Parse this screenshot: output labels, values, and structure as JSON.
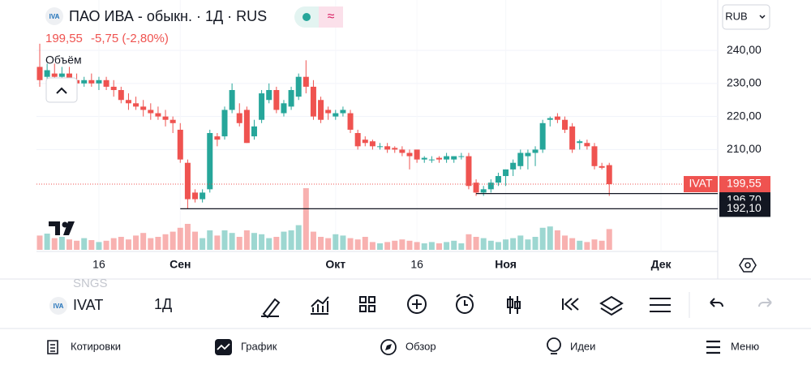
{
  "header": {
    "logo": "IVA",
    "title": "ПАО ИВА - обыкн. · 1Д · RUS",
    "price": "199,55",
    "change": "-5,75 (-2,80%)",
    "currency": "RUB",
    "volume_label": "Объём"
  },
  "chart": {
    "type": "candlestick",
    "candles": [
      [
        235,
        242,
        229,
        231
      ],
      [
        232,
        236,
        230,
        234
      ],
      [
        233,
        236,
        231,
        232
      ],
      [
        232,
        235,
        230,
        233
      ],
      [
        233,
        235,
        231,
        231
      ],
      [
        231,
        233,
        229,
        230
      ],
      [
        230,
        232,
        229,
        231
      ],
      [
        231,
        233,
        229,
        230
      ],
      [
        230,
        232,
        228,
        231
      ],
      [
        231,
        232,
        228,
        229
      ],
      [
        229,
        231,
        226,
        228
      ],
      [
        228,
        229,
        224,
        225
      ],
      [
        225,
        227,
        222,
        224
      ],
      [
        224,
        226,
        222,
        223
      ],
      [
        223,
        225,
        220,
        222
      ],
      [
        222,
        224,
        219,
        221
      ],
      [
        221,
        223,
        219,
        220
      ],
      [
        220,
        222,
        217,
        219
      ],
      [
        219,
        220,
        215,
        218
      ],
      [
        216,
        218,
        206,
        207
      ],
      [
        206,
        207,
        192,
        195
      ],
      [
        197,
        198,
        194,
        195
      ],
      [
        195,
        198,
        194,
        197
      ],
      [
        198,
        216,
        197,
        215
      ],
      [
        214,
        215,
        211,
        213
      ],
      [
        214,
        223,
        213,
        222
      ],
      [
        222,
        230,
        221,
        228
      ],
      [
        221,
        224,
        217,
        218
      ],
      [
        222,
        223,
        212,
        212
      ],
      [
        214,
        219,
        213,
        217
      ],
      [
        219,
        228,
        218,
        227
      ],
      [
        225,
        230,
        224,
        228
      ],
      [
        228,
        229,
        221,
        222
      ],
      [
        221,
        225,
        220,
        224
      ],
      [
        223,
        229,
        222,
        228
      ],
      [
        226,
        233,
        225,
        232
      ],
      [
        232,
        237,
        227,
        229
      ],
      [
        229,
        231,
        219,
        220
      ],
      [
        225,
        226,
        218,
        219
      ],
      [
        222,
        223,
        219,
        221
      ],
      [
        220,
        222,
        219,
        221
      ],
      [
        221,
        223,
        220,
        222
      ],
      [
        221,
        222,
        215,
        216
      ],
      [
        215,
        216,
        210,
        211
      ],
      [
        213,
        214,
        211,
        212
      ],
      [
        212.5,
        213,
        210,
        211
      ],
      [
        211,
        212,
        210,
        211
      ],
      [
        211,
        212,
        209,
        210
      ],
      [
        210.5,
        211,
        209,
        210
      ],
      [
        210,
        211,
        208,
        209
      ],
      [
        209,
        210,
        204,
        208
      ],
      [
        210,
        210,
        206,
        207
      ],
      [
        207,
        208,
        206,
        207.5
      ],
      [
        207,
        208,
        206,
        207
      ],
      [
        207.5,
        208,
        206,
        207
      ],
      [
        207,
        209,
        206,
        208
      ],
      [
        207,
        208,
        206,
        208
      ],
      [
        208,
        209,
        207,
        208
      ],
      [
        208,
        209,
        198,
        199
      ],
      [
        200,
        201,
        196,
        197
      ],
      [
        197,
        199,
        196,
        198
      ],
      [
        198,
        201,
        197,
        200
      ],
      [
        200,
        203,
        199,
        202
      ],
      [
        202,
        204,
        199,
        204
      ],
      [
        204,
        207,
        202,
        206
      ],
      [
        205,
        210,
        204,
        209
      ],
      [
        208,
        210,
        204,
        209
      ],
      [
        209,
        211,
        205,
        210
      ],
      [
        210,
        219,
        209,
        218
      ],
      [
        219,
        220,
        217,
        219.5
      ],
      [
        220,
        221,
        218,
        219
      ],
      [
        219,
        220,
        215,
        216
      ],
      [
        217,
        218,
        209,
        210
      ],
      [
        212,
        213,
        210,
        212.5
      ],
      [
        212,
        213,
        210,
        211
      ],
      [
        211,
        212,
        204,
        205
      ],
      [
        205,
        206,
        204,
        204.5
      ],
      [
        205.3,
        206,
        196,
        199.55
      ]
    ],
    "volumes": [
      22,
      25,
      18,
      20,
      16,
      14,
      18,
      15,
      12,
      14,
      18,
      20,
      16,
      22,
      26,
      18,
      20,
      24,
      28,
      34,
      40,
      28,
      18,
      30,
      22,
      30,
      26,
      20,
      30,
      26,
      24,
      18,
      20,
      28,
      30,
      38,
      95,
      28,
      20,
      18,
      24,
      22,
      18,
      16,
      20,
      12,
      10,
      12,
      14,
      16,
      14,
      12,
      10,
      12,
      10,
      12,
      14,
      10,
      24,
      20,
      18,
      14,
      12,
      16,
      18,
      22,
      16,
      20,
      34,
      36,
      30,
      22,
      18,
      14,
      12,
      16,
      14,
      32
    ],
    "vlim": [
      0,
      100
    ],
    "ylim": [
      179.2,
      254
    ],
    "yticks": [
      {
        "value": 240,
        "label": "240,00"
      },
      {
        "value": 230,
        "label": "230,00"
      },
      {
        "value": 220,
        "label": "220,00"
      },
      {
        "value": 210,
        "label": "210,00"
      }
    ],
    "xticks": [
      {
        "value": 8,
        "label": "16"
      },
      {
        "value": 19,
        "label": "Сен"
      },
      {
        "value": 40,
        "label": "Окт"
      },
      {
        "value": 51,
        "label": "16"
      },
      {
        "value": 63,
        "label": "Ноя"
      },
      {
        "value": 84,
        "label": "Дек"
      }
    ],
    "last_price": {
      "name": "IVAT",
      "value": 199.55,
      "label": "199,55"
    },
    "levels": [
      {
        "value": 196.7,
        "label": "196,70",
        "start": 59
      },
      {
        "value": 192.1,
        "label": "192,10",
        "start": 19
      }
    ]
  },
  "toolbar": {
    "logo": "IVA",
    "symbol": "IVAT",
    "interval": "1Д",
    "ghost_symbol": "SNGS"
  },
  "nav": [
    "Котировки",
    "График",
    "Обзор",
    "Идеи",
    "Меню"
  ]
}
